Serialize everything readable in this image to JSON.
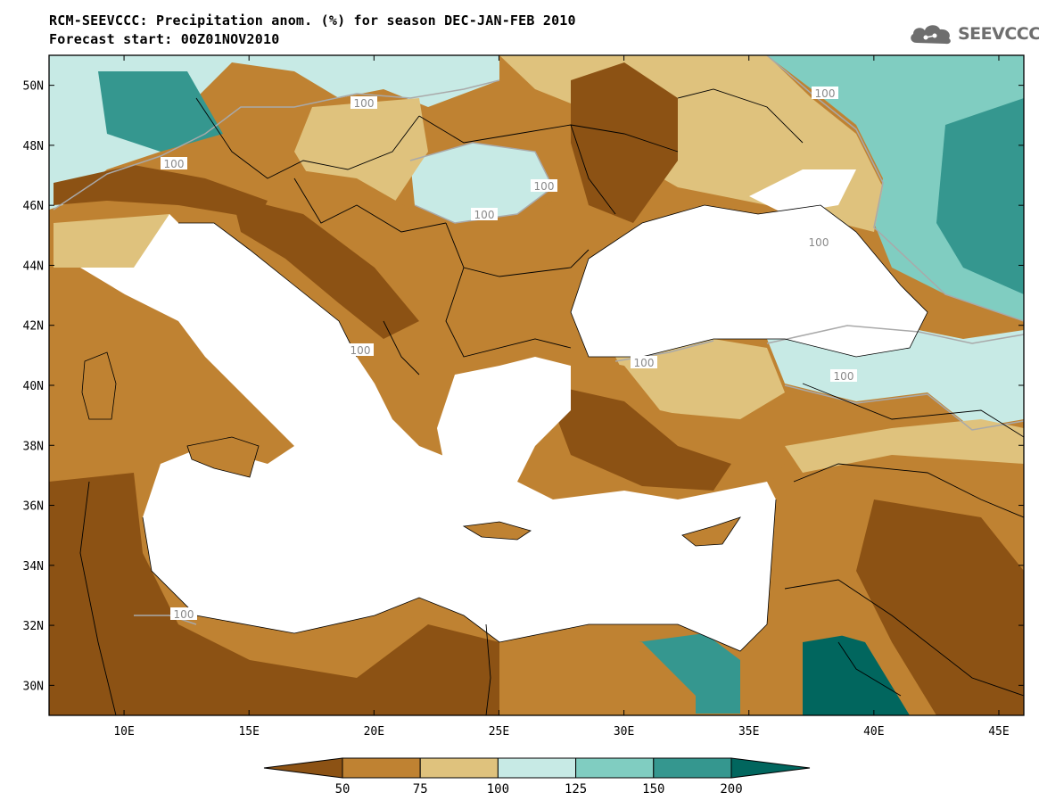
{
  "header": {
    "title_line1": "RCM-SEEVCCC: Precipitation anom. (%) for season DEC-JAN-FEB 2010",
    "title_line2": "Forecast start: 00Z01NOV2010",
    "logo_text": "SEEVCCC",
    "logo_icon": "cloud-icon"
  },
  "map": {
    "lon_range": [
      7,
      46
    ],
    "lat_range": [
      29,
      51
    ],
    "lat_labels": [
      "50N",
      "48N",
      "46N",
      "44N",
      "42N",
      "40N",
      "38N",
      "36N",
      "34N",
      "32N",
      "30N"
    ],
    "lon_labels": [
      "10E",
      "15E",
      "20E",
      "25E",
      "30E",
      "35E",
      "40E",
      "45E"
    ],
    "contour_labels": [
      "100",
      "100",
      "100",
      "100",
      "100",
      "100",
      "100",
      "100",
      "100",
      "100"
    ]
  },
  "colorbar": {
    "colors": [
      "#8c5214",
      "#bf8232",
      "#dfc27d",
      "#c7eae5",
      "#80cdc1",
      "#35978f",
      "#01665e"
    ],
    "labels": [
      "50",
      "75",
      "100",
      "125",
      "150",
      "200"
    ]
  },
  "palette": {
    "dry_strong": "#8c5214",
    "dry": "#bf8232",
    "dry_light": "#dfc27d",
    "wet_light": "#c7eae5",
    "wet": "#80cdc1",
    "wet_strong": "#35978f",
    "wet_extreme": "#01665e",
    "sea": "#ffffff"
  }
}
